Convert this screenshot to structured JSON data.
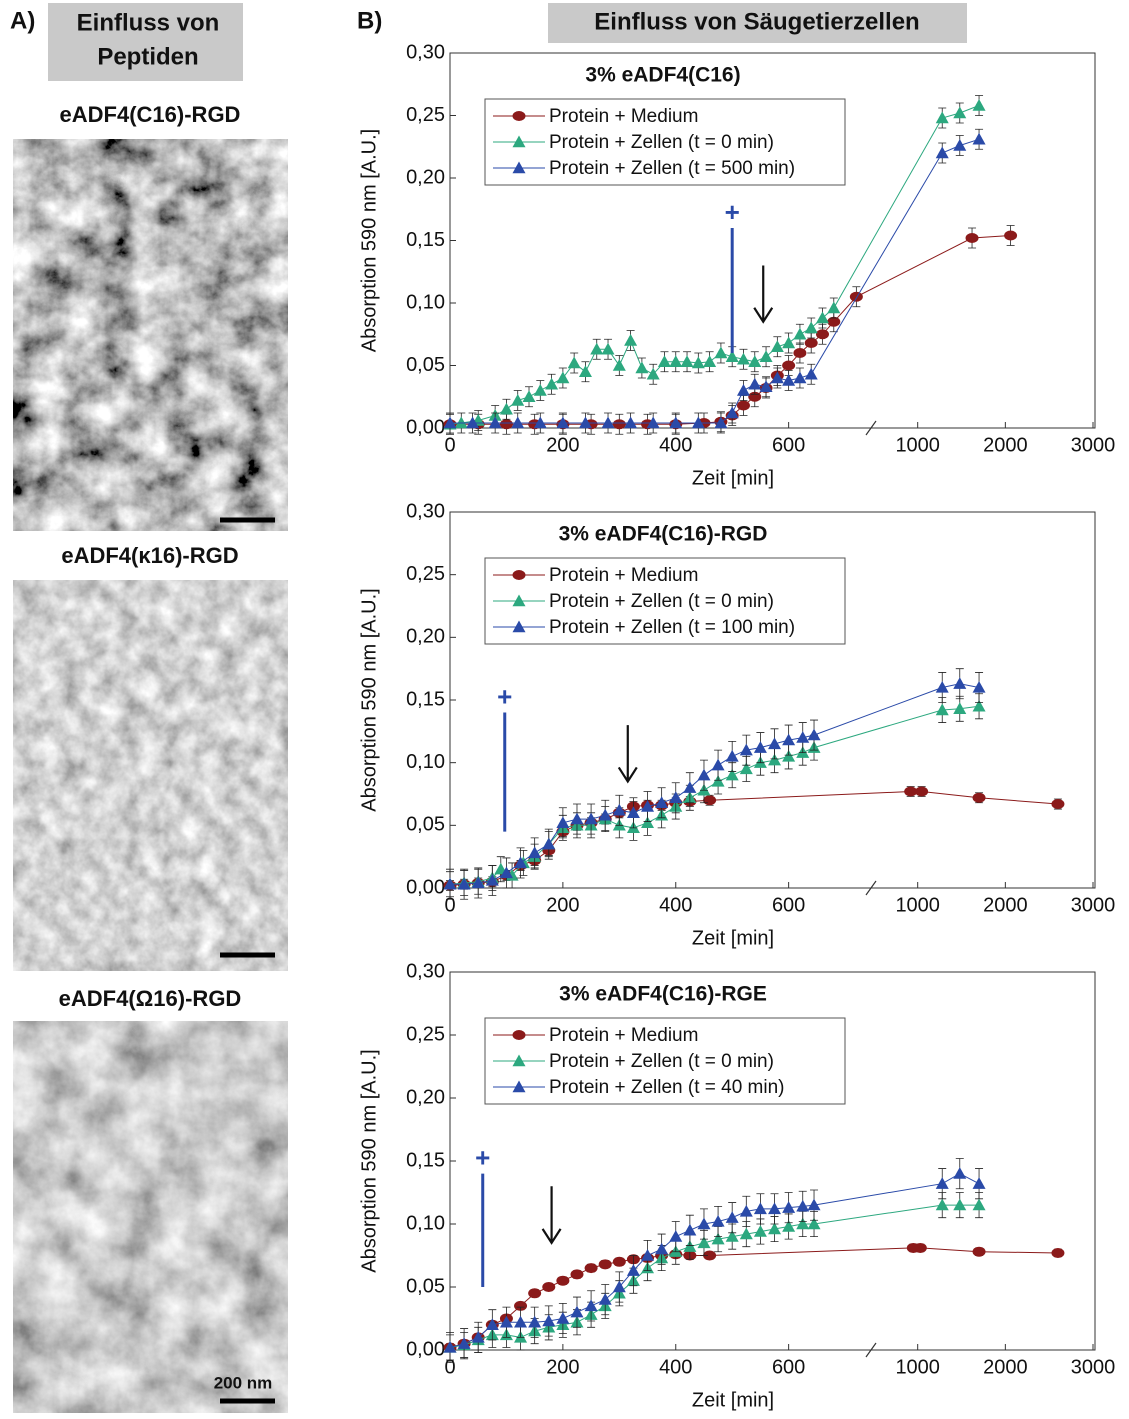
{
  "panel_a": {
    "label": "A)",
    "heading": [
      "Einfluss von",
      "Peptiden"
    ],
    "images": [
      {
        "title": "eADF4(C16)-RGD"
      },
      {
        "title": "eADF4(κ16)-RGD"
      },
      {
        "title": "eADF4(Ω16)-RGD"
      }
    ],
    "scale_bar_label": "200 nm"
  },
  "panel_b": {
    "label": "B)",
    "heading": "Einfluss von Säugetierzellen"
  },
  "chart_data": [
    {
      "type": "line",
      "title": "3% eADF4(C16)",
      "xlabel": "Zeit [min]",
      "ylabel": "Absorption 590 nm [A.U.]",
      "xsegments": [
        [
          0,
          730
        ],
        [
          570,
          3000
        ]
      ],
      "xticks": [
        0,
        200,
        400,
        600,
        1000,
        2000,
        3000
      ],
      "ylim": [
        0,
        0.3
      ],
      "yticks": [
        {
          "value": 0,
          "label": "0,00"
        },
        {
          "value": 0.05,
          "label": "0,05"
        },
        {
          "value": 0.1,
          "label": "0,10"
        },
        {
          "value": 0.15,
          "label": "0,15"
        },
        {
          "value": 0.2,
          "label": "0,20"
        },
        {
          "value": 0.25,
          "label": "0,25"
        },
        {
          "value": 0.3,
          "label": "0,30"
        }
      ],
      "series": [
        {
          "name": "Protein + Medium",
          "color": "#8b1a1a",
          "marker": "circle",
          "error": 0.008,
          "x": [
            0,
            50,
            100,
            150,
            200,
            250,
            300,
            350,
            400,
            450,
            480,
            500,
            520,
            540,
            560,
            580,
            600,
            620,
            640,
            660,
            680,
            720,
            1620,
            2060
          ],
          "values": [
            0.003,
            0.003,
            0.003,
            0.003,
            0.003,
            0.003,
            0.003,
            0.003,
            0.003,
            0.004,
            0.005,
            0.01,
            0.018,
            0.025,
            0.032,
            0.042,
            0.05,
            0.06,
            0.068,
            0.075,
            0.085,
            0.105,
            0.152,
            0.154
          ]
        },
        {
          "name": "Protein + Zellen (t = 0 min)",
          "color": "#2ca87f",
          "marker": "triangle",
          "error": 0.008,
          "x": [
            0,
            20,
            50,
            80,
            100,
            120,
            140,
            160,
            180,
            200,
            220,
            240,
            260,
            280,
            300,
            320,
            340,
            360,
            380,
            400,
            420,
            440,
            460,
            480,
            500,
            520,
            540,
            560,
            580,
            600,
            620,
            640,
            660,
            680,
            1280,
            1480,
            1700
          ],
          "values": [
            0.003,
            0.004,
            0.006,
            0.01,
            0.015,
            0.022,
            0.025,
            0.03,
            0.035,
            0.04,
            0.052,
            0.045,
            0.063,
            0.063,
            0.05,
            0.07,
            0.048,
            0.043,
            0.053,
            0.053,
            0.053,
            0.052,
            0.053,
            0.06,
            0.057,
            0.055,
            0.053,
            0.057,
            0.065,
            0.068,
            0.075,
            0.08,
            0.088,
            0.096,
            0.248,
            0.252,
            0.258
          ]
        },
        {
          "name": "Protein + Zellen (t = 500 min)",
          "color": "#2a4aa8",
          "marker": "triangle",
          "error": 0.008,
          "x": [
            0,
            40,
            80,
            120,
            160,
            200,
            240,
            280,
            320,
            360,
            400,
            440,
            480,
            500,
            520,
            540,
            560,
            580,
            600,
            620,
            640,
            1280,
            1480,
            1700
          ],
          "values": [
            0.004,
            0.004,
            0.004,
            0.004,
            0.004,
            0.004,
            0.004,
            0.004,
            0.004,
            0.004,
            0.004,
            0.004,
            0.004,
            0.012,
            0.03,
            0.035,
            0.033,
            0.04,
            0.038,
            0.04,
            0.043,
            0.22,
            0.226,
            0.231
          ]
        }
      ],
      "plus": {
        "label": "+",
        "x": 500,
        "y": [
          0.06,
          0.16
        ]
      },
      "arrow": {
        "x": 555,
        "y": [
          0.13,
          0.085
        ]
      }
    },
    {
      "type": "line",
      "title": "3% eADF4(C16)-RGD",
      "xlabel": "Zeit [min]",
      "ylabel": "Absorption 590 nm [A.U.]",
      "xsegments": [
        [
          0,
          730
        ],
        [
          570,
          3000
        ]
      ],
      "xticks": [
        0,
        200,
        400,
        600,
        1000,
        2000,
        3000
      ],
      "ylim": [
        0,
        0.3
      ],
      "yticks": [
        {
          "value": 0,
          "label": "0,00"
        },
        {
          "value": 0.05,
          "label": "0,05"
        },
        {
          "value": 0.1,
          "label": "0,10"
        },
        {
          "value": 0.15,
          "label": "0,15"
        },
        {
          "value": 0.2,
          "label": "0,20"
        },
        {
          "value": 0.25,
          "label": "0,25"
        },
        {
          "value": 0.3,
          "label": "0,30"
        }
      ],
      "series": [
        {
          "name": "Protein + Medium",
          "color": "#8b1a1a",
          "marker": "circle",
          "error": 0.004,
          "x": [
            0,
            25,
            50,
            75,
            100,
            125,
            150,
            175,
            200,
            225,
            250,
            275,
            300,
            325,
            350,
            375,
            400,
            425,
            460,
            920,
            1045,
            1700,
            2600
          ],
          "values": [
            0.002,
            0.003,
            0.004,
            0.005,
            0.01,
            0.018,
            0.022,
            0.03,
            0.045,
            0.05,
            0.052,
            0.055,
            0.06,
            0.065,
            0.066,
            0.066,
            0.068,
            0.069,
            0.07,
            0.077,
            0.077,
            0.072,
            0.067
          ]
        },
        {
          "name": "Protein + Zellen (t = 0 min)",
          "color": "#2ca87f",
          "marker": "triangle",
          "error": 0.01,
          "x": [
            0,
            25,
            50,
            75,
            90,
            110,
            130,
            150,
            175,
            200,
            225,
            250,
            275,
            300,
            325,
            350,
            375,
            400,
            425,
            450,
            475,
            500,
            525,
            550,
            575,
            600,
            625,
            645,
            1280,
            1480,
            1700
          ],
          "values": [
            0.003,
            0.004,
            0.005,
            0.008,
            0.015,
            0.01,
            0.02,
            0.025,
            0.035,
            0.048,
            0.05,
            0.05,
            0.055,
            0.05,
            0.048,
            0.052,
            0.058,
            0.065,
            0.072,
            0.078,
            0.085,
            0.09,
            0.095,
            0.1,
            0.102,
            0.105,
            0.108,
            0.112,
            0.142,
            0.143,
            0.145
          ]
        },
        {
          "name": "Protein + Zellen (t = 100 min)",
          "color": "#2a4aa8",
          "marker": "triangle",
          "error": 0.012,
          "x": [
            0,
            25,
            50,
            75,
            100,
            125,
            150,
            175,
            200,
            225,
            250,
            275,
            300,
            325,
            350,
            375,
            400,
            425,
            450,
            475,
            500,
            525,
            550,
            575,
            600,
            625,
            645,
            1280,
            1480,
            1700
          ],
          "values": [
            0.003,
            0.003,
            0.004,
            0.006,
            0.012,
            0.02,
            0.028,
            0.035,
            0.052,
            0.055,
            0.055,
            0.058,
            0.062,
            0.06,
            0.065,
            0.068,
            0.072,
            0.08,
            0.09,
            0.098,
            0.105,
            0.11,
            0.112,
            0.115,
            0.118,
            0.12,
            0.122,
            0.16,
            0.163,
            0.16
          ]
        }
      ],
      "plus": {
        "label": "+",
        "x": 97,
        "y": [
          0.045,
          0.14
        ]
      },
      "arrow": {
        "x": 315,
        "y": [
          0.13,
          0.085
        ]
      }
    },
    {
      "type": "line",
      "title": "3% eADF4(C16)-RGE",
      "xlabel": "Zeit [min]",
      "ylabel": "Absorption 590 nm [A.U.]",
      "xsegments": [
        [
          0,
          730
        ],
        [
          570,
          3000
        ]
      ],
      "xticks": [
        0,
        200,
        400,
        600,
        1000,
        2000,
        3000
      ],
      "ylim": [
        0,
        0.3
      ],
      "yticks": [
        {
          "value": 0,
          "label": "0,00"
        },
        {
          "value": 0.05,
          "label": "0,05"
        },
        {
          "value": 0.1,
          "label": "0,10"
        },
        {
          "value": 0.15,
          "label": "0,15"
        },
        {
          "value": 0.2,
          "label": "0,20"
        },
        {
          "value": 0.25,
          "label": "0,25"
        },
        {
          "value": 0.3,
          "label": "0,30"
        }
      ],
      "series": [
        {
          "name": "Protein + Medium",
          "color": "#8b1a1a",
          "marker": "circle",
          "error": 0.003,
          "x": [
            0,
            25,
            50,
            75,
            100,
            125,
            150,
            175,
            200,
            225,
            250,
            275,
            300,
            325,
            350,
            375,
            400,
            425,
            460,
            950,
            1030,
            1700,
            2600
          ],
          "values": [
            0.002,
            0.005,
            0.01,
            0.02,
            0.025,
            0.035,
            0.045,
            0.05,
            0.055,
            0.06,
            0.065,
            0.068,
            0.07,
            0.072,
            0.073,
            0.075,
            0.076,
            0.075,
            0.075,
            0.081,
            0.081,
            0.078,
            0.077
          ]
        },
        {
          "name": "Protein + Zellen (t = 0 min)",
          "color": "#2ca87f",
          "marker": "triangle",
          "error": 0.01,
          "x": [
            0,
            25,
            50,
            75,
            100,
            125,
            150,
            175,
            200,
            225,
            250,
            275,
            300,
            325,
            350,
            375,
            400,
            425,
            450,
            475,
            500,
            525,
            550,
            575,
            600,
            625,
            645,
            1280,
            1480,
            1700
          ],
          "values": [
            0.002,
            0.004,
            0.008,
            0.012,
            0.012,
            0.01,
            0.015,
            0.018,
            0.02,
            0.022,
            0.028,
            0.035,
            0.045,
            0.055,
            0.065,
            0.073,
            0.078,
            0.082,
            0.085,
            0.088,
            0.09,
            0.092,
            0.094,
            0.096,
            0.098,
            0.1,
            0.1,
            0.115,
            0.115,
            0.115
          ]
        },
        {
          "name": "Protein + Zellen (t = 40 min)",
          "color": "#2a4aa8",
          "marker": "triangle",
          "error": 0.012,
          "x": [
            0,
            25,
            50,
            75,
            100,
            125,
            150,
            175,
            200,
            225,
            250,
            275,
            300,
            325,
            350,
            375,
            400,
            425,
            450,
            475,
            500,
            525,
            550,
            575,
            600,
            625,
            645,
            1280,
            1480,
            1700
          ],
          "values": [
            0.002,
            0.005,
            0.01,
            0.02,
            0.022,
            0.022,
            0.022,
            0.023,
            0.025,
            0.03,
            0.035,
            0.04,
            0.05,
            0.063,
            0.075,
            0.08,
            0.09,
            0.095,
            0.1,
            0.102,
            0.105,
            0.11,
            0.112,
            0.112,
            0.113,
            0.114,
            0.115,
            0.132,
            0.14,
            0.132
          ]
        }
      ],
      "plus": {
        "label": "+",
        "x": 58,
        "y": [
          0.05,
          0.14
        ]
      },
      "arrow": {
        "x": 180,
        "y": [
          0.13,
          0.085
        ]
      }
    }
  ]
}
